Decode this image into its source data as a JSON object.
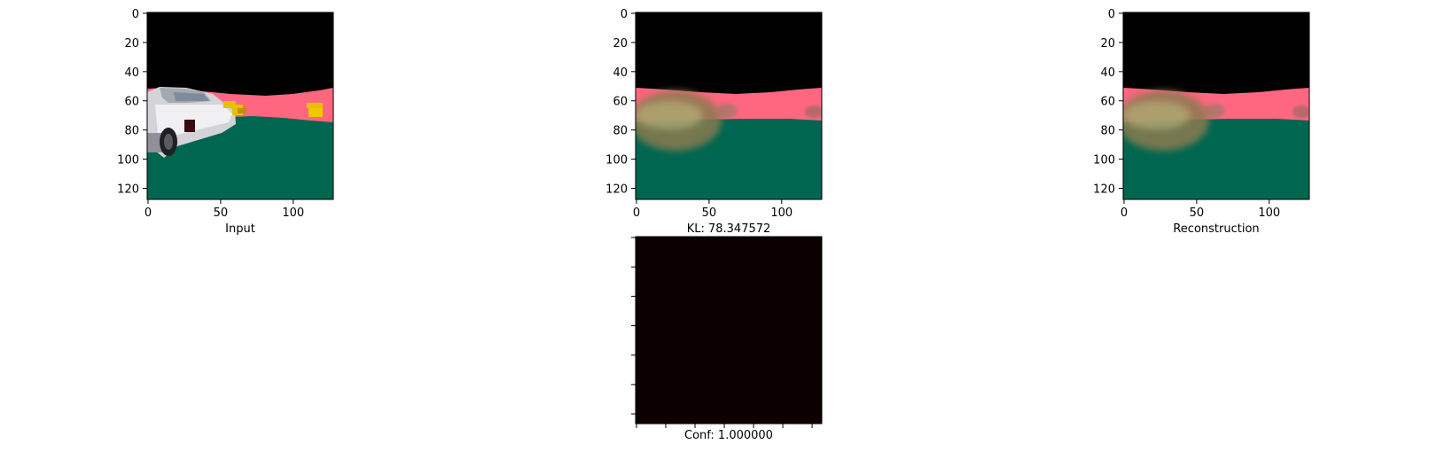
{
  "chart_data": [
    {
      "type": "image",
      "xlabel": "Input",
      "xticks": [
        0,
        50,
        100
      ],
      "yticks": [
        0,
        20,
        40,
        60,
        80,
        100,
        120
      ],
      "xlim": [
        0,
        127
      ],
      "ylim": [
        127,
        0
      ],
      "colors": {
        "sky": "#000000",
        "road": "#ff6680",
        "ground": "#00664f",
        "car": "#d8d8dc",
        "cones": "#e8c000"
      }
    },
    {
      "type": "image",
      "xlabel": "KL: 78.347572",
      "xticks": [
        0,
        50,
        100
      ],
      "yticks": [
        0,
        20,
        40,
        60,
        80,
        100,
        120
      ],
      "xlim": [
        0,
        127
      ],
      "ylim": [
        127,
        0
      ],
      "colors": {
        "sky": "#000000",
        "road": "#ff6680",
        "ground": "#00664f",
        "blur": "#8a7a50"
      }
    },
    {
      "type": "image",
      "xlabel": "Reconstruction",
      "xticks": [
        0,
        50,
        100
      ],
      "yticks": [
        0,
        20,
        40,
        60,
        80,
        100,
        120
      ],
      "xlim": [
        0,
        127
      ],
      "ylim": [
        127,
        0
      ],
      "colors": {
        "sky": "#000000",
        "road": "#ff6680",
        "ground": "#00664f",
        "blur": "#8a7a50"
      }
    },
    {
      "type": "heatmap",
      "xlabel": "Conf: 1.000000",
      "value": 1.0,
      "colors": {
        "fill": "#0d0000"
      }
    }
  ]
}
